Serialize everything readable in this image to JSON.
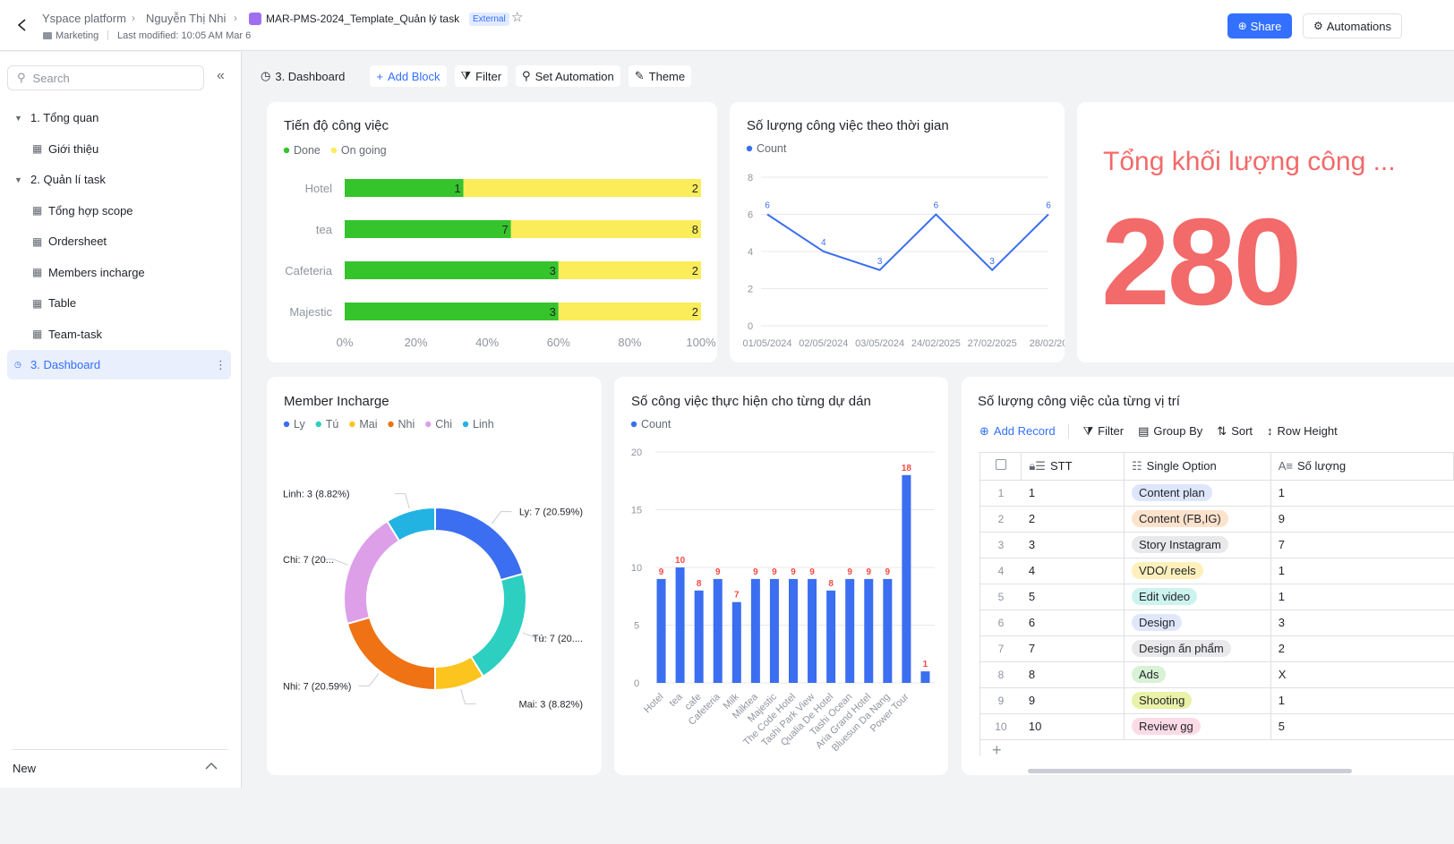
{
  "header": {
    "breadcrumb": [
      "Yspace platform",
      "Nguyễn Thị Nhi",
      "MAR-PMS-2024_Template_Quản lý task"
    ],
    "badge": "External",
    "folder": "Marketing",
    "modified": "Last modified: 10:05 AM Mar 6",
    "buttons": [
      "Share",
      "Automations"
    ]
  },
  "sidebar": {
    "search": "Search",
    "items": [
      {
        "label": "1. Tổng quan",
        "children": [
          "Giới thiệu"
        ]
      },
      {
        "label": "2. Quản lí task",
        "children": [
          "Tổng hợp scope",
          "Ordersheet",
          "Members incharge",
          "Table",
          "Team-task"
        ]
      },
      {
        "label": "3. Dashboard",
        "active": true
      }
    ],
    "footer": "New"
  },
  "toolbar": [
    "3. Dashboard",
    "Add Block",
    "Filter",
    "Set Automation",
    "Theme"
  ],
  "chart_data": [
    {
      "type": "bar",
      "orientation": "horizontal",
      "stacking": "percent",
      "title": "Tiến độ công việc",
      "categories": [
        "Hotel",
        "tea",
        "Cafeteria",
        "Majestic"
      ],
      "series": [
        {
          "name": "Done",
          "color": "#35c42b",
          "values": [
            1,
            7,
            3,
            3
          ]
        },
        {
          "name": "On going",
          "color": "#fbec5a",
          "values": [
            2,
            8,
            2,
            2
          ]
        }
      ],
      "xlim": [
        0,
        100
      ],
      "xticks": [
        {
          "value": 0,
          "label": "0%"
        },
        {
          "value": 20,
          "label": "20%"
        },
        {
          "value": 40,
          "label": "40%"
        },
        {
          "value": 60,
          "label": "60%"
        },
        {
          "value": 80,
          "label": "80%"
        },
        {
          "value": 100,
          "label": "100%"
        }
      ]
    },
    {
      "type": "line",
      "title": "Số lượng công việc theo thời gian",
      "categories": [
        "01/05/2024",
        "02/05/2024",
        "03/05/2024",
        "24/02/2025",
        "27/02/2025",
        "28/02/20"
      ],
      "series": [
        {
          "name": "Count",
          "color": "#3b6ef0",
          "values": [
            6,
            4,
            3,
            6,
            3,
            6
          ]
        }
      ],
      "ylim": [
        0,
        8
      ],
      "yticks": [
        0,
        2,
        4,
        6,
        8
      ],
      "grid": true
    },
    {
      "type": "pie",
      "title": "Member Incharge",
      "hole": true,
      "categories": [
        "Ly",
        "Tú",
        "Mai",
        "Nhi",
        "Chi",
        "Linh"
      ],
      "values": [
        7,
        7,
        3,
        7,
        7,
        3
      ],
      "value_labels": [
        "Ly: 7 (20.59%)",
        "Tú: 7 (20....",
        "Mai: 3 (8.82%)",
        "Nhi: 7 (20.59%)",
        "Chi: 7 (20...",
        "Linh: 3 (8.82%)"
      ],
      "colors": [
        "#3b6ef0",
        "#2ccfc0",
        "#fcc41e",
        "#ef7214",
        "#dc9fe8",
        "#22b3e3"
      ]
    },
    {
      "type": "bar",
      "title": "Số công việc thực hiện cho từng dự dán",
      "categories": [
        "Hotel",
        "tea",
        "cafe",
        "Cafeteria",
        "Milk",
        "Milktea",
        "Majestic",
        "The Code Hotel",
        "Tashi Park View",
        "Qualia De Hotel",
        "Tashi Ocean",
        "Aria Grand Hotel",
        "Bluesun Da Nang",
        "Power Tour",
        null
      ],
      "series": [
        {
          "name": "Count",
          "color": "#3b6ef0",
          "values": [
            9,
            10,
            8,
            9,
            7,
            9,
            9,
            9,
            9,
            8,
            9,
            9,
            9,
            18,
            1
          ]
        }
      ],
      "ylim": [
        0,
        20
      ],
      "yticks": [
        0,
        5,
        10,
        15,
        20
      ],
      "grid": true,
      "label_color": "#f54a45"
    }
  ],
  "metric": {
    "title": "Tổng khối lượng công ...",
    "value": 280
  },
  "table": {
    "title": "Số lượng công việc của từng vị trí",
    "toolbar": [
      "Add Record",
      "Filter",
      "Group By",
      "Sort",
      "Row Height"
    ],
    "columns": [
      "STT",
      "Single Option",
      "Số lượng"
    ],
    "rows": [
      {
        "row": 1,
        "stt": 1,
        "option": "Content plan",
        "color": "#dde6fb",
        "count": 1
      },
      {
        "row": 2,
        "stt": 2,
        "option": "Content (FB,IG)",
        "color": "#fde2cc",
        "count": 9
      },
      {
        "row": 3,
        "stt": 3,
        "option": "Story Instagram",
        "color": "#e8e9eb",
        "count": 7
      },
      {
        "row": 4,
        "stt": 4,
        "option": "VDO/ reels",
        "color": "#fdf0bb",
        "count": 1
      },
      {
        "row": 5,
        "stt": 5,
        "option": "Edit video",
        "color": "#cdf3ef",
        "count": 1
      },
      {
        "row": 6,
        "stt": 6,
        "option": "Design",
        "color": "#e1e7fb",
        "count": 3
      },
      {
        "row": 7,
        "stt": 7,
        "option": "Design ấn phẩm",
        "color": "#e9e9eb",
        "count": 2
      },
      {
        "row": 8,
        "stt": 8,
        "option": "Ads",
        "color": "#d7f2d4",
        "count": "X"
      },
      {
        "row": 9,
        "stt": 9,
        "option": "Shooting",
        "color": "#eaf1a8",
        "count": 1
      },
      {
        "row": 10,
        "stt": 10,
        "option": "Review gg",
        "color": "#fcdbe6",
        "count": 5
      }
    ]
  }
}
